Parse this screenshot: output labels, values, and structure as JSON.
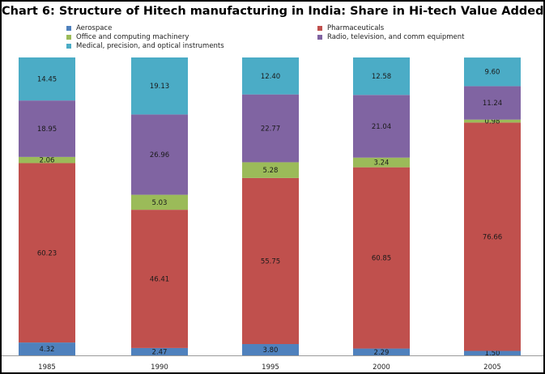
{
  "chart_data": {
    "type": "bar",
    "stacked": true,
    "title": "Chart 6: Structure of Hitech manufacturing in India: Share in Hi-tech Value Added",
    "xlabel": "",
    "ylabel": "",
    "ylim": [
      0,
      100
    ],
    "grid": false,
    "legend_position": "top",
    "categories": [
      "1985",
      "1990",
      "1995",
      "2000",
      "2005"
    ],
    "series": [
      {
        "name": "Aerospace",
        "color": "#4f81bd",
        "values": [
          4.32,
          2.47,
          3.8,
          2.29,
          1.5
        ],
        "labels": [
          "4.32",
          "2.47",
          "3.80",
          "2.29",
          "1.50"
        ]
      },
      {
        "name": "Pharmaceuticals",
        "color": "#c0504d",
        "values": [
          60.23,
          46.41,
          55.75,
          60.85,
          76.66
        ],
        "labels": [
          "60.23",
          "46.41",
          "55.75",
          "60.85",
          "76.66"
        ]
      },
      {
        "name": "Office and computing machinery",
        "color": "#9bbb59",
        "values": [
          2.06,
          5.03,
          5.28,
          3.24,
          0.98
        ],
        "labels": [
          "2.06",
          "5.03",
          "5.28",
          "3.24",
          "0.98"
        ]
      },
      {
        "name": "Radio, television, and comm equipment",
        "color": "#8064a2",
        "values": [
          18.95,
          26.96,
          22.77,
          21.04,
          11.24
        ],
        "labels": [
          "18.95",
          "26.96",
          "22.77",
          "21.04",
          "11.24"
        ]
      },
      {
        "name": "Medical, precision, and optical instruments",
        "color": "#4bacc6",
        "values": [
          14.45,
          19.13,
          12.4,
          12.58,
          9.6
        ],
        "labels": [
          "14.45",
          "19.13",
          "12.40",
          "12.58",
          "9.60"
        ]
      }
    ]
  }
}
